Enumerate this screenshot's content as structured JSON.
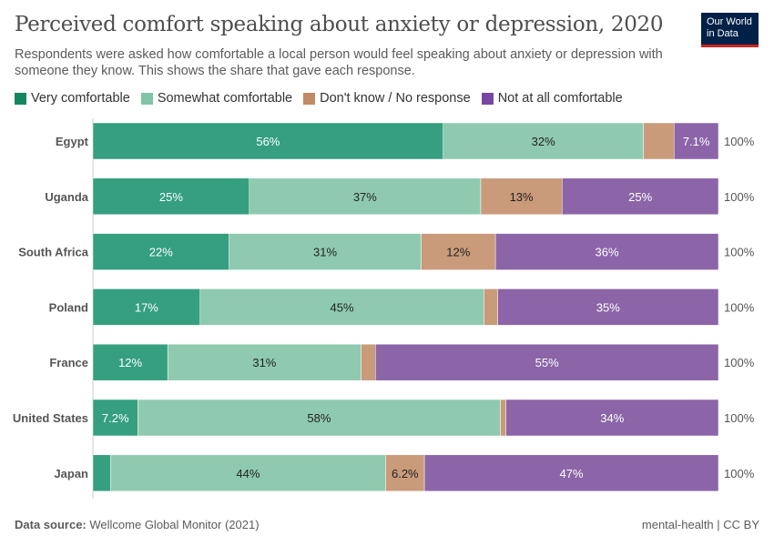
{
  "title": "Perceived comfort speaking about anxiety or depression, 2020",
  "subtitle": "Respondents were asked how comfortable a local person would feel speaking about anxiety or depression with someone they know. This shows the share that gave each response.",
  "logo": {
    "line1": "Our World",
    "line2": "in Data"
  },
  "footer": {
    "source_label": "Data source:",
    "source": "Wellcome Global Monitor (2021)",
    "right": "mental-health | CC BY"
  },
  "chart_data": {
    "type": "bar",
    "orientation": "horizontal",
    "stacked": true,
    "unit": "%",
    "xlim": [
      0,
      100
    ],
    "legend_position": "top",
    "categories": [
      "Egypt",
      "Uganda",
      "South Africa",
      "Poland",
      "France",
      "United States",
      "Japan"
    ],
    "totals": [
      "100%",
      "100%",
      "100%",
      "100%",
      "100%",
      "100%",
      "100%"
    ],
    "series": [
      {
        "name": "Very comfortable",
        "color": "#359f80",
        "legend_color": "#14865f",
        "text_color": "#ffffff",
        "values": [
          56,
          25,
          22,
          17,
          12,
          7.2,
          2.8
        ],
        "labels": [
          "56%",
          "25%",
          "22%",
          "17%",
          "12%",
          "7.2%",
          ""
        ]
      },
      {
        "name": "Somewhat comfortable",
        "color": "#8fcab0",
        "legend_color": "#7fc4a6",
        "text_color": "#222222",
        "values": [
          32,
          37,
          31,
          45,
          31,
          58,
          44
        ],
        "labels": [
          "32%",
          "37%",
          "31%",
          "45%",
          "31%",
          "58%",
          "44%"
        ]
      },
      {
        "name": "Don't know / No response",
        "color": "#c99b7a",
        "legend_color": "#c08a65",
        "text_color": "#222222",
        "values": [
          4.9,
          13,
          12,
          2.2,
          2.3,
          0.9,
          6.2
        ],
        "labels": [
          "",
          "13%",
          "12%",
          "",
          "",
          "",
          "6.2%"
        ]
      },
      {
        "name": "Not at all comfortable",
        "color": "#8b65a8",
        "legend_color": "#7a46a3",
        "text_color": "#ffffff",
        "values": [
          7.1,
          25,
          36,
          35,
          55,
          34,
          47
        ],
        "labels": [
          "7.1%",
          "25%",
          "36%",
          "35%",
          "55%",
          "34%",
          "47%"
        ]
      }
    ]
  }
}
